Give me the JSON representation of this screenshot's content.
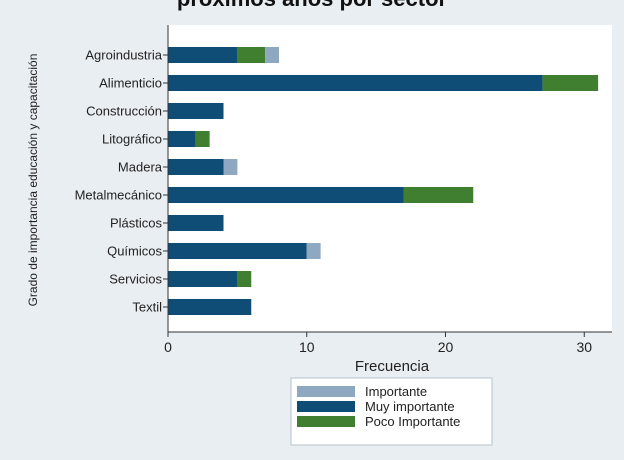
{
  "chart_data": {
    "type": "bar",
    "orientation": "horizontal",
    "stacked": true,
    "title": "próximos años por sector",
    "xlabel": "Frecuencia",
    "ylabel": "Grado de importancia educación y capacitación",
    "categories": [
      "Agroindustria",
      "Alimenticio",
      "Construcción",
      "Litográfico",
      "Madera",
      "Metalmecánico",
      "Plásticos",
      "Químicos",
      "Servicios",
      "Textil"
    ],
    "series": [
      {
        "name": "Muy importante",
        "color": "#0f4c76",
        "values": [
          5,
          27,
          4,
          2,
          4,
          17,
          4,
          10,
          5,
          6
        ]
      },
      {
        "name": "Poco Importante",
        "color": "#3f7f2f",
        "values": [
          2,
          4,
          0,
          1,
          0,
          5,
          0,
          0,
          1,
          0
        ]
      },
      {
        "name": "Importante",
        "color": "#8fa8c2",
        "values": [
          1,
          0,
          0,
          0,
          1,
          0,
          0,
          1,
          0,
          0
        ]
      }
    ],
    "legend_order": [
      "Importante",
      "Muy importante",
      "Poco Importante"
    ],
    "xlim": [
      0,
      32
    ],
    "xticks": [
      0,
      10,
      20,
      30
    ],
    "grid": false,
    "legend_position": "bottom"
  },
  "colors": {
    "background": "#e9eef3",
    "plot_area": "#ffffff"
  }
}
